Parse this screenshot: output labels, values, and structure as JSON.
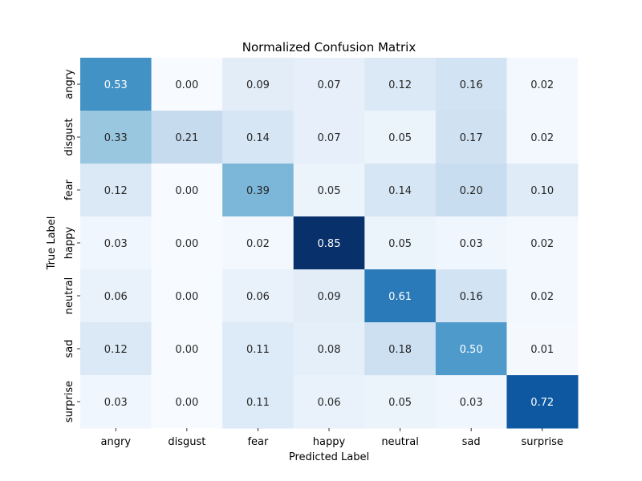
{
  "chart_data": {
    "type": "heatmap",
    "title": "Normalized Confusion Matrix",
    "xlabel": "Predicted Label",
    "ylabel": "True Label",
    "x_categories": [
      "angry",
      "disgust",
      "fear",
      "happy",
      "neutral",
      "sad",
      "surprise"
    ],
    "y_categories": [
      "angry",
      "disgust",
      "fear",
      "happy",
      "neutral",
      "sad",
      "surprise"
    ],
    "values": [
      [
        0.53,
        0.0,
        0.09,
        0.07,
        0.12,
        0.16,
        0.02
      ],
      [
        0.33,
        0.21,
        0.14,
        0.07,
        0.05,
        0.17,
        0.02
      ],
      [
        0.12,
        0.0,
        0.39,
        0.05,
        0.14,
        0.2,
        0.1
      ],
      [
        0.03,
        0.0,
        0.02,
        0.85,
        0.05,
        0.03,
        0.02
      ],
      [
        0.06,
        0.0,
        0.06,
        0.09,
        0.61,
        0.16,
        0.02
      ],
      [
        0.12,
        0.0,
        0.11,
        0.08,
        0.18,
        0.5,
        0.01
      ],
      [
        0.03,
        0.0,
        0.11,
        0.06,
        0.05,
        0.03,
        0.72
      ]
    ],
    "color_map": "Blues",
    "value_range": [
      0.0,
      0.85
    ],
    "colorbar": false,
    "grid": false
  }
}
